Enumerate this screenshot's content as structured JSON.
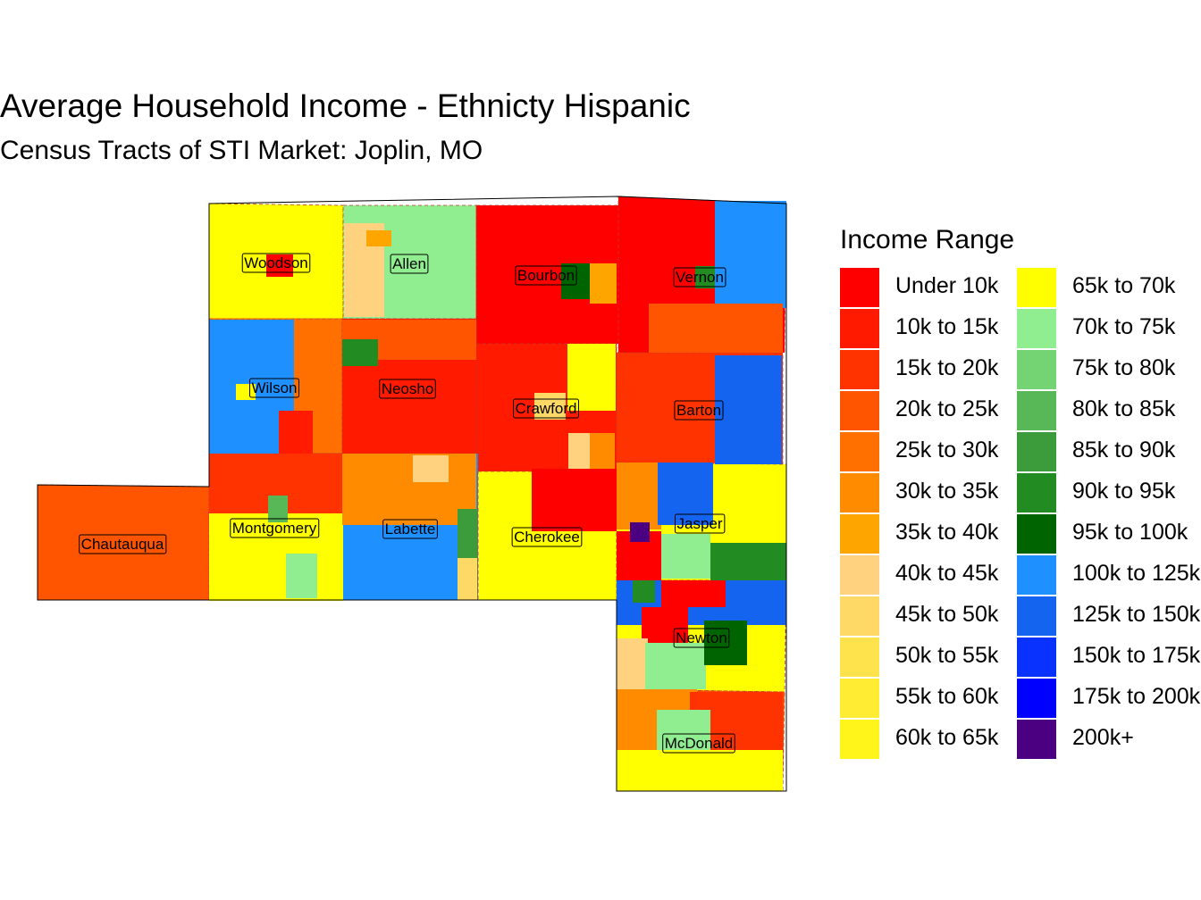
{
  "title": "Average Household Income - Ethnicty Hispanic",
  "subtitle": "Census Tracts of STI Market: Joplin, MO",
  "legend": {
    "title": "Income Range",
    "items": [
      {
        "label": "Under 10k",
        "color": "#FF0000"
      },
      {
        "label": "10k to 15k",
        "color": "#FF1A00"
      },
      {
        "label": "15k to 20k",
        "color": "#FF3300"
      },
      {
        "label": "20k to 25k",
        "color": "#FF5500"
      },
      {
        "label": "25k to 30k",
        "color": "#FF7000"
      },
      {
        "label": "30k to 35k",
        "color": "#FF8C00"
      },
      {
        "label": "35k to 40k",
        "color": "#FFA500"
      },
      {
        "label": "40k to 45k",
        "color": "#FFD27F"
      },
      {
        "label": "45k to 50k",
        "color": "#FFD966"
      },
      {
        "label": "50k to 55k",
        "color": "#FFE34D"
      },
      {
        "label": "55k to 60k",
        "color": "#FFEC33"
      },
      {
        "label": "60k to 65k",
        "color": "#FFF51A"
      },
      {
        "label": "65k to 70k",
        "color": "#FFFF00"
      },
      {
        "label": "70k to 75k",
        "color": "#90EE90"
      },
      {
        "label": "75k to 80k",
        "color": "#74D474"
      },
      {
        "label": "80k to 85k",
        "color": "#58B858"
      },
      {
        "label": "85k to 90k",
        "color": "#3C9C3C"
      },
      {
        "label": "90k to 95k",
        "color": "#228B22"
      },
      {
        "label": "95k to 100k",
        "color": "#006400"
      },
      {
        "label": "100k to 125k",
        "color": "#1E90FF"
      },
      {
        "label": "125k to 150k",
        "color": "#1464F0"
      },
      {
        "label": "150k to 175k",
        "color": "#0A32FF"
      },
      {
        "label": "175k to 200k",
        "color": "#0000FF"
      },
      {
        "label": "200k+",
        "color": "#4B0082"
      }
    ]
  },
  "counties": [
    {
      "name": "Woodson",
      "fill": "#FFFF00"
    },
    {
      "name": "Allen",
      "fill": "#90EE90"
    },
    {
      "name": "Bourbon",
      "fill": "#FF0000"
    },
    {
      "name": "Vernon",
      "fill": "#FF0000"
    },
    {
      "name": "Wilson",
      "fill": "#FF7000"
    },
    {
      "name": "Neosho",
      "fill": "#FF1A00"
    },
    {
      "name": "Crawford",
      "fill": "#FF1A00"
    },
    {
      "name": "Barton",
      "fill": "#FF3300"
    },
    {
      "name": "Chautauqua",
      "fill": "#FF5500"
    },
    {
      "name": "Montgomery",
      "fill": "#FFFF00"
    },
    {
      "name": "Labette",
      "fill": "#1E90FF"
    },
    {
      "name": "Cherokee",
      "fill": "#FFFF00"
    },
    {
      "name": "Jasper",
      "fill": "#FFFF00"
    },
    {
      "name": "Newton",
      "fill": "#FFFF00"
    },
    {
      "name": "McDonald",
      "fill": "#FF5500"
    }
  ]
}
